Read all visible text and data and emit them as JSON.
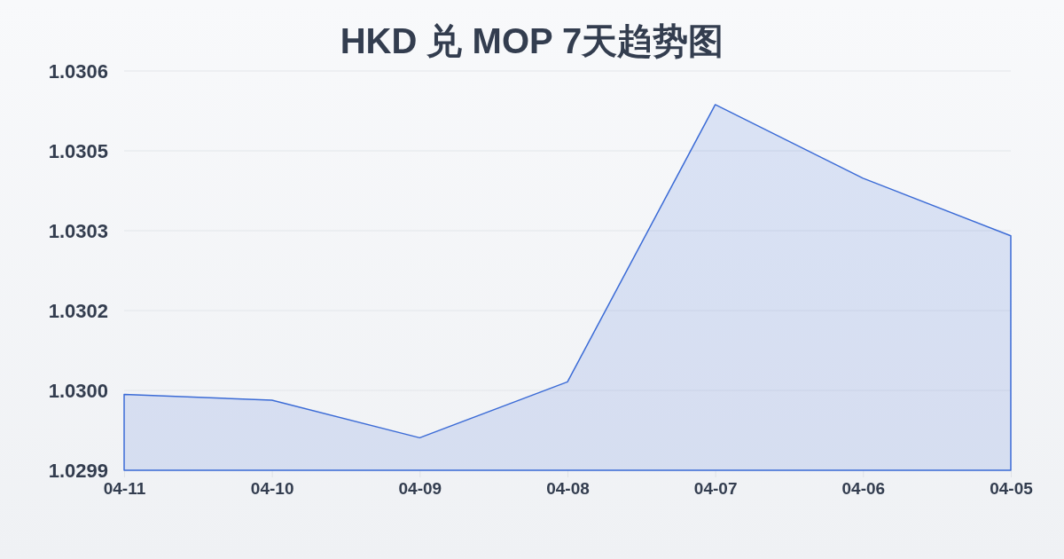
{
  "chart_data": {
    "type": "area",
    "title": "HKD 兑 MOP 7天趋势图",
    "categories": [
      "04-11",
      "04-10",
      "04-09",
      "04-08",
      "04-07",
      "04-06",
      "04-05"
    ],
    "values": [
      1.030033,
      1.030023,
      1.029957,
      1.030055,
      1.030541,
      1.030412,
      1.030311
    ],
    "color": "#3b6bd6",
    "ylim": [
      1.0299,
      1.0306
    ],
    "yticks": [
      1.0299,
      {
        "value": 1.03004,
        "label": "1.0300"
      },
      {
        "value": 1.03018,
        "label": "1.0302"
      },
      {
        "value": 1.03032,
        "label": "1.0303"
      },
      {
        "value": 1.03046,
        "label": "1.0305"
      },
      1.0306
    ],
    "grid": "y"
  }
}
